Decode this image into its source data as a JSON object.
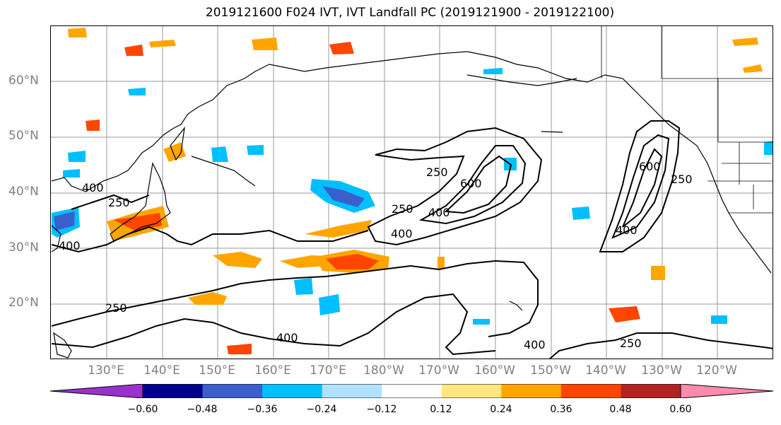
{
  "title": "2019121600 F024 IVT, IVT Landfall PC (2019121900 - 2019122100)",
  "lat_labels": [
    "60°N",
    "50°N",
    "40°N",
    "30°N",
    "20°N"
  ],
  "lon_labels": [
    "130°E",
    "140°E",
    "150°E",
    "160°E",
    "170°E",
    "180°W",
    "170°W",
    "160°W",
    "150°W",
    "140°W",
    "130°W",
    "120°W"
  ],
  "contour_labels": [
    "250",
    "400",
    "600",
    "250",
    "600",
    "400",
    "400",
    "250",
    "400",
    "250",
    "400",
    "250",
    "400",
    "400",
    "250"
  ],
  "colorbar": {
    "ticks": [
      "−0.60",
      "−0.48",
      "−0.36",
      "−0.24",
      "−0.12",
      "0.12",
      "0.24",
      "0.36",
      "0.48",
      "0.60"
    ],
    "colors": [
      "#9932CC",
      "#00008B",
      "#3A5FCD",
      "#00BFFF",
      "#B0E2FF",
      "#FFFFFF",
      "#FFE680",
      "#FFA500",
      "#FF4500",
      "#B22222",
      "#FF8AAE"
    ]
  },
  "colors": {
    "coast": "#000000",
    "grid": "#999999",
    "contour": "#000000"
  }
}
